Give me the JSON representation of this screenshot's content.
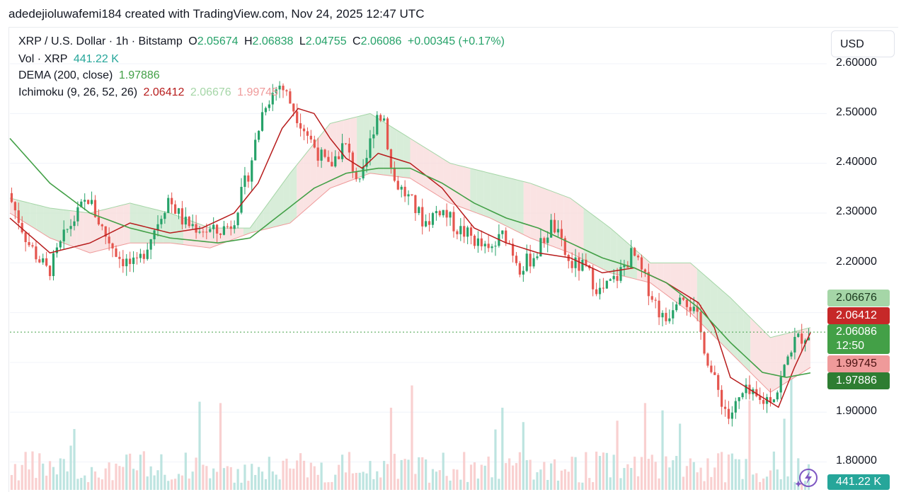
{
  "caption": "adedejioluwafemi184 created with TradingView.com, Nov 24, 2025 12:47 UTC",
  "currency_label": "USD",
  "legend": {
    "symbol": "XRP / U.S. Dollar · 1h · Bitstamp",
    "o_label": "O",
    "o_value": "2.05674",
    "h_label": "H",
    "h_value": "2.06838",
    "l_label": "L",
    "l_value": "2.04755",
    "c_label": "C",
    "c_value": "2.06086",
    "change": "+0.00345 (+0.17%)",
    "vol_label": "Vol · XRP",
    "vol_value": "441.22 K",
    "dema_label": "DEMA (200, close)",
    "dema_value": "1.97886",
    "ichimoku_label": "Ichimoku (9, 26, 52, 26)",
    "ichimoku_v1": "2.06412",
    "ichimoku_v2": "2.06676",
    "ichimoku_v3": "1.99745"
  },
  "price_tags": {
    "span_a": "2.06676",
    "conversion": "2.06412",
    "last": "2.06086",
    "countdown": "12:50",
    "span_b": "1.99745",
    "dema": "1.97886",
    "volume": "441.22 K"
  },
  "colors": {
    "up": "#26a269",
    "down": "#e5564f",
    "tenkan": "#b71c1c",
    "dema": "#43a047",
    "cloud_bull": "#c8e6c9",
    "cloud_bear": "#f8d7d7",
    "span_a_tag": "#a5d6a7",
    "conversion_tag": "#c62828",
    "last_tag": "#43a047",
    "span_b_tag": "#ef9a9a",
    "dema_tag": "#2e7d32",
    "volume_tag": "#26a69a"
  },
  "chart_data": {
    "type": "candlestick",
    "symbol": "XRP / U.S. Dollar",
    "interval": "1h",
    "exchange": "Bitstamp",
    "y_axis_ticks": [
      "2.60000",
      "2.50000",
      "2.40000",
      "2.30000",
      "2.20000",
      "1.90000",
      "1.80000"
    ],
    "ylim": [
      1.77,
      2.63
    ],
    "last_close": 2.06086,
    "close_path": [
      [
        0,
        2.34
      ],
      [
        0.025,
        2.24
      ],
      [
        0.05,
        2.18
      ],
      [
        0.075,
        2.27
      ],
      [
        0.1,
        2.33
      ],
      [
        0.12,
        2.26
      ],
      [
        0.14,
        2.21
      ],
      [
        0.16,
        2.19
      ],
      [
        0.18,
        2.26
      ],
      [
        0.2,
        2.33
      ],
      [
        0.22,
        2.28
      ],
      [
        0.24,
        2.27
      ],
      [
        0.26,
        2.26
      ],
      [
        0.28,
        2.28
      ],
      [
        0.3,
        2.38
      ],
      [
        0.32,
        2.52
      ],
      [
        0.34,
        2.56
      ],
      [
        0.36,
        2.5
      ],
      [
        0.38,
        2.44
      ],
      [
        0.4,
        2.39
      ],
      [
        0.42,
        2.44
      ],
      [
        0.44,
        2.35
      ],
      [
        0.46,
        2.5
      ],
      [
        0.47,
        2.49
      ],
      [
        0.48,
        2.37
      ],
      [
        0.5,
        2.33
      ],
      [
        0.52,
        2.28
      ],
      [
        0.54,
        2.31
      ],
      [
        0.56,
        2.27
      ],
      [
        0.58,
        2.25
      ],
      [
        0.6,
        2.22
      ],
      [
        0.62,
        2.26
      ],
      [
        0.64,
        2.19
      ],
      [
        0.66,
        2.22
      ],
      [
        0.68,
        2.28
      ],
      [
        0.7,
        2.2
      ],
      [
        0.72,
        2.19
      ],
      [
        0.74,
        2.14
      ],
      [
        0.76,
        2.17
      ],
      [
        0.78,
        2.22
      ],
      [
        0.8,
        2.15
      ],
      [
        0.82,
        2.08
      ],
      [
        0.84,
        2.15
      ],
      [
        0.86,
        2.09
      ],
      [
        0.88,
        1.97
      ],
      [
        0.9,
        1.89
      ],
      [
        0.92,
        1.94
      ],
      [
        0.94,
        1.92
      ],
      [
        0.96,
        1.94
      ],
      [
        0.98,
        2.04
      ],
      [
        1.0,
        2.06
      ]
    ],
    "tenkan_path": [
      [
        0,
        2.29
      ],
      [
        0.05,
        2.22
      ],
      [
        0.1,
        2.24
      ],
      [
        0.15,
        2.28
      ],
      [
        0.2,
        2.26
      ],
      [
        0.24,
        2.27
      ],
      [
        0.28,
        2.3
      ],
      [
        0.31,
        2.36
      ],
      [
        0.34,
        2.47
      ],
      [
        0.36,
        2.51
      ],
      [
        0.38,
        2.5
      ],
      [
        0.4,
        2.45
      ],
      [
        0.42,
        2.41
      ],
      [
        0.44,
        2.39
      ],
      [
        0.46,
        2.42
      ],
      [
        0.48,
        2.41
      ],
      [
        0.5,
        2.4
      ],
      [
        0.54,
        2.35
      ],
      [
        0.58,
        2.27
      ],
      [
        0.62,
        2.24
      ],
      [
        0.66,
        2.22
      ],
      [
        0.7,
        2.21
      ],
      [
        0.74,
        2.18
      ],
      [
        0.78,
        2.19
      ],
      [
        0.82,
        2.16
      ],
      [
        0.86,
        2.12
      ],
      [
        0.88,
        2.07
      ],
      [
        0.9,
        1.97
      ],
      [
        0.93,
        1.94
      ],
      [
        0.96,
        1.91
      ],
      [
        0.98,
        1.99
      ],
      [
        1.0,
        2.06
      ]
    ],
    "dema_path": [
      [
        0,
        2.45
      ],
      [
        0.05,
        2.36
      ],
      [
        0.1,
        2.3
      ],
      [
        0.15,
        2.27
      ],
      [
        0.2,
        2.25
      ],
      [
        0.26,
        2.24
      ],
      [
        0.3,
        2.25
      ],
      [
        0.34,
        2.3
      ],
      [
        0.38,
        2.35
      ],
      [
        0.42,
        2.38
      ],
      [
        0.46,
        2.39
      ],
      [
        0.5,
        2.39
      ],
      [
        0.54,
        2.36
      ],
      [
        0.58,
        2.32
      ],
      [
        0.62,
        2.29
      ],
      [
        0.66,
        2.27
      ],
      [
        0.7,
        2.24
      ],
      [
        0.74,
        2.21
      ],
      [
        0.78,
        2.19
      ],
      [
        0.82,
        2.16
      ],
      [
        0.86,
        2.11
      ],
      [
        0.9,
        2.04
      ],
      [
        0.94,
        1.98
      ],
      [
        0.97,
        1.97
      ],
      [
        1.0,
        1.979
      ]
    ],
    "cloud_upper_path": [
      [
        0,
        2.33
      ],
      [
        0.05,
        2.31
      ],
      [
        0.1,
        2.3
      ],
      [
        0.15,
        2.32
      ],
      [
        0.2,
        2.3
      ],
      [
        0.25,
        2.27
      ],
      [
        0.3,
        2.27
      ],
      [
        0.35,
        2.38
      ],
      [
        0.4,
        2.48
      ],
      [
        0.45,
        2.5
      ],
      [
        0.5,
        2.45
      ],
      [
        0.55,
        2.4
      ],
      [
        0.6,
        2.38
      ],
      [
        0.65,
        2.36
      ],
      [
        0.7,
        2.33
      ],
      [
        0.75,
        2.27
      ],
      [
        0.8,
        2.2
      ],
      [
        0.85,
        2.2
      ],
      [
        0.9,
        2.13
      ],
      [
        0.95,
        2.05
      ],
      [
        1.0,
        2.07
      ]
    ],
    "cloud_lower_path": [
      [
        0,
        2.3
      ],
      [
        0.05,
        2.25
      ],
      [
        0.1,
        2.22
      ],
      [
        0.15,
        2.24
      ],
      [
        0.2,
        2.24
      ],
      [
        0.25,
        2.23
      ],
      [
        0.3,
        2.26
      ],
      [
        0.35,
        2.28
      ],
      [
        0.4,
        2.35
      ],
      [
        0.45,
        2.38
      ],
      [
        0.5,
        2.37
      ],
      [
        0.55,
        2.32
      ],
      [
        0.6,
        2.29
      ],
      [
        0.65,
        2.25
      ],
      [
        0.7,
        2.22
      ],
      [
        0.75,
        2.18
      ],
      [
        0.8,
        2.16
      ],
      [
        0.85,
        2.1
      ],
      [
        0.9,
        2.02
      ],
      [
        0.95,
        1.94
      ],
      [
        1.0,
        1.99
      ]
    ]
  }
}
